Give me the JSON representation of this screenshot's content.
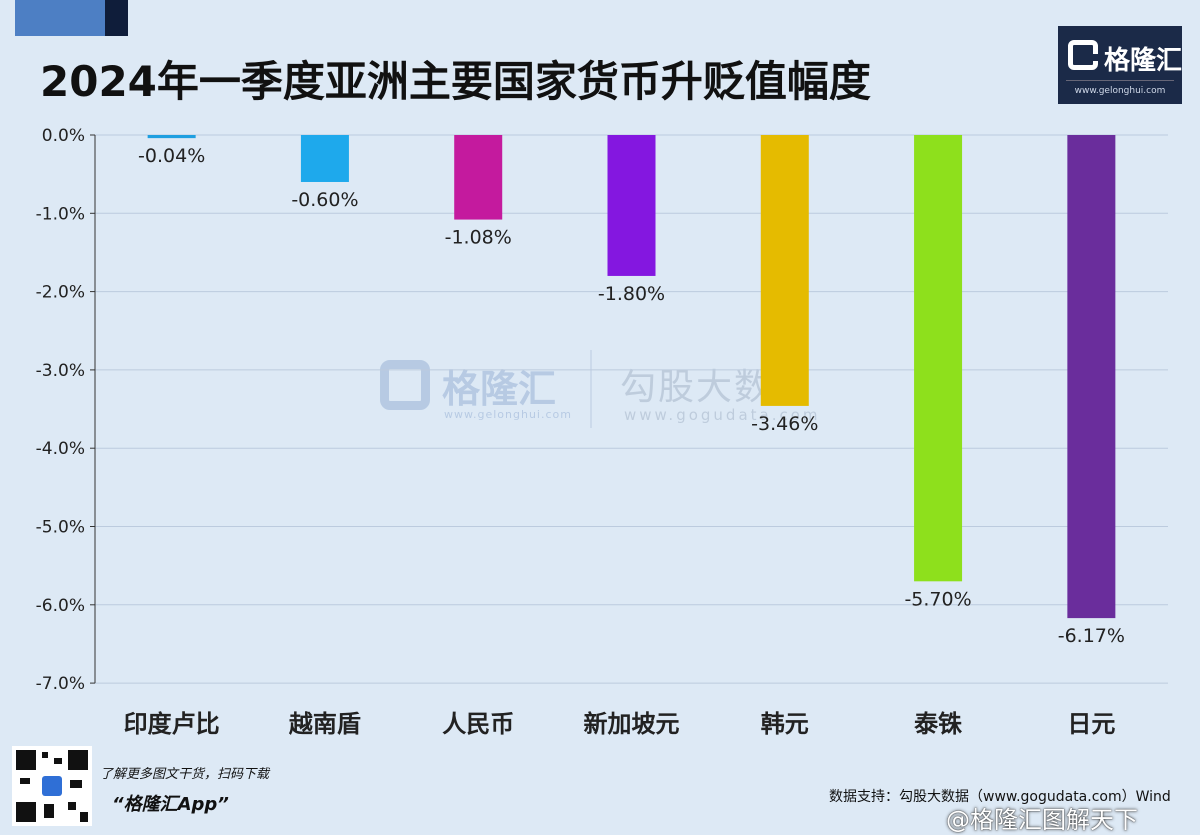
{
  "title": "2024年一季度亚洲主要国家货币升贬值幅度",
  "logo": {
    "name": "格隆汇",
    "url": "www.gelonghui.com"
  },
  "watermark": {
    "brand1": "格隆汇",
    "url1": "www.gelonghui.com",
    "brand2": "勾股大数据",
    "url2": "www.gogudata.com"
  },
  "footer": {
    "promo_line": "了解更多图文干货，扫码下载",
    "app_name": "“格隆汇App”",
    "source": "数据支持：勾股大数据（www.gogudata.com）Wind",
    "weibo": "@格隆汇图解天下"
  },
  "chart_data": {
    "type": "bar",
    "title": "2024年一季度亚洲主要国家货币升贬值幅度",
    "xlabel": "",
    "ylabel": "",
    "ylim": [
      -7.0,
      0.0
    ],
    "yticks": [
      "0.0%",
      "-1.0%",
      "-2.0%",
      "-3.0%",
      "-4.0%",
      "-5.0%",
      "-6.0%",
      "-7.0%"
    ],
    "grid": true,
    "categories": [
      "印度卢比",
      "越南盾",
      "人民币",
      "新加坡元",
      "韩元",
      "泰铢",
      "日元"
    ],
    "values": [
      -0.04,
      -0.6,
      -1.08,
      -1.8,
      -3.46,
      -5.7,
      -6.17
    ],
    "value_labels": [
      "-0.04%",
      "-0.60%",
      "-1.08%",
      "-1.80%",
      "-3.46%",
      "-5.70%",
      "-6.17%"
    ],
    "colors": [
      "#1e9fe0",
      "#1ea9ec",
      "#c41a9e",
      "#8417e0",
      "#e5bb00",
      "#8ee01c",
      "#6a2d9c"
    ]
  }
}
